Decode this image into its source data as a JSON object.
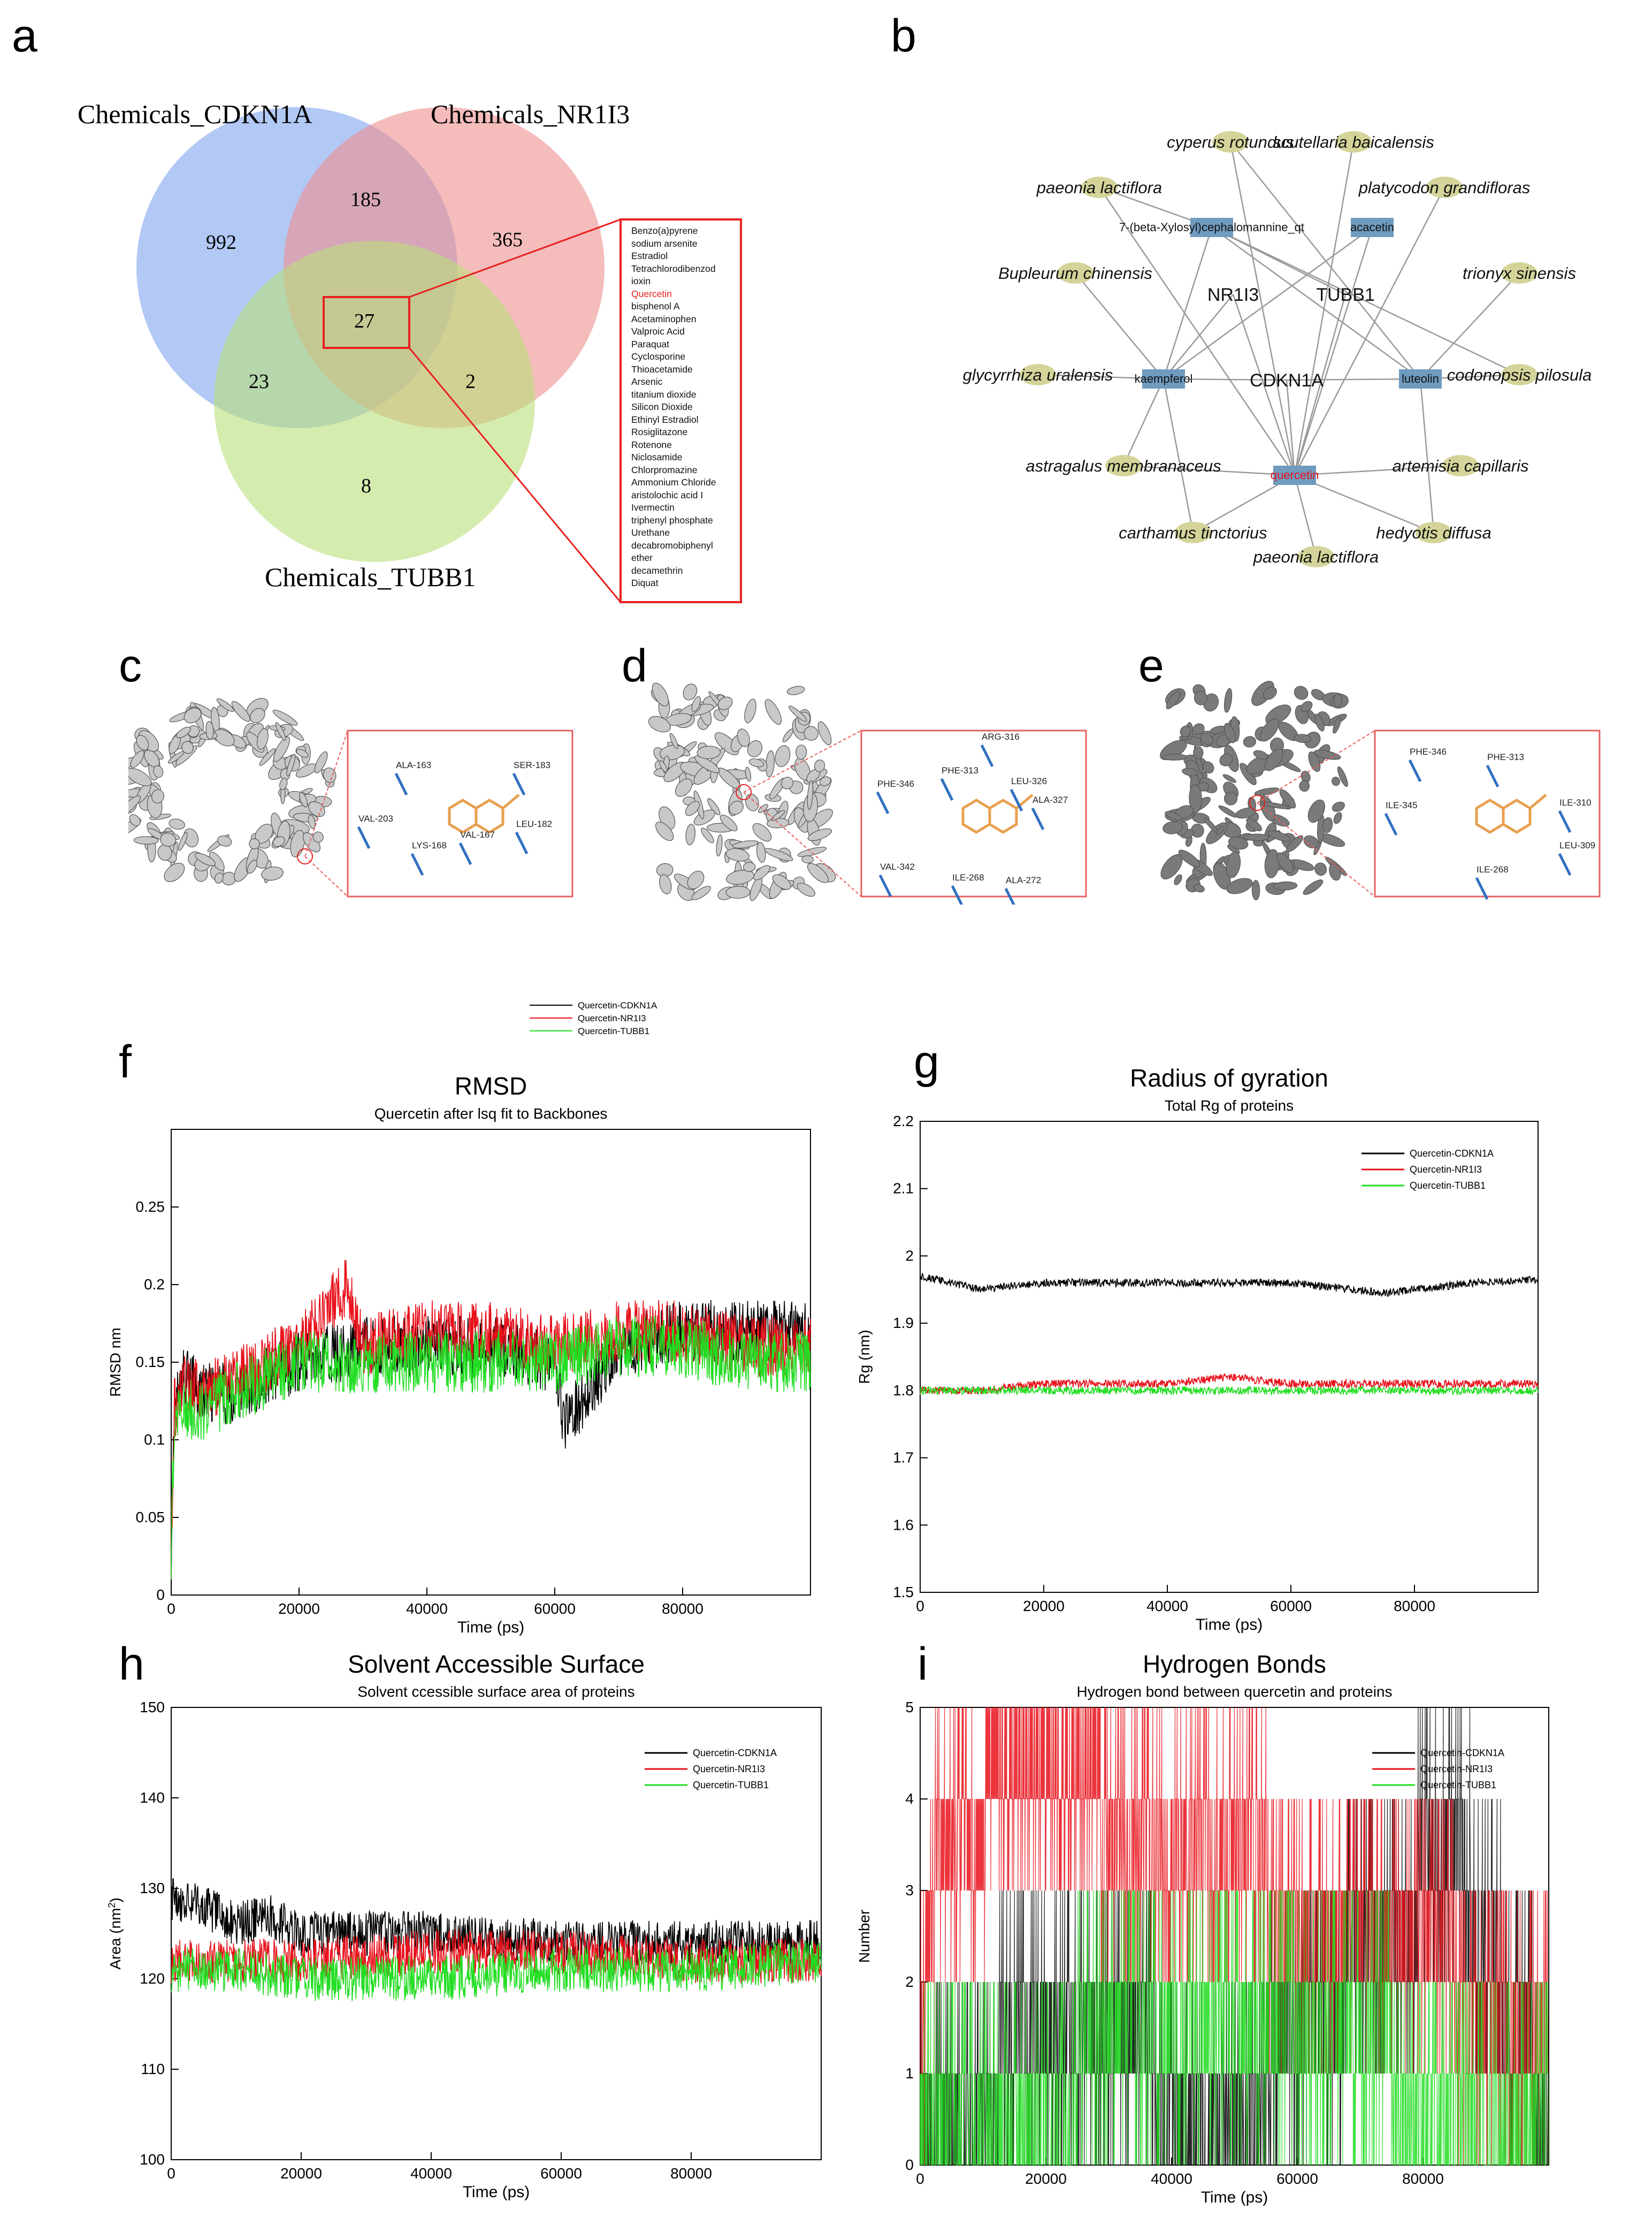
{
  "panels": [
    "a",
    "b",
    "c",
    "d",
    "e",
    "f",
    "g",
    "h",
    "i"
  ],
  "venn": {
    "labels": [
      "Chemicals_CDKN1A",
      "Chemicals_NR1I3",
      "Chemicals_TUBB1"
    ],
    "counts": {
      "cdkn1a_only": "992",
      "cdkn1a_nr1i3": "185",
      "nr1i3_only": "365",
      "all_three": "27",
      "cdkn1a_tubb1": "23",
      "nr1i3_tubb1": "2",
      "tubb1_only": "8"
    },
    "colors": {
      "cdkn1a": "#7fa3ee",
      "nr1i3": "#ef8f8f",
      "tubb1": "#b9e07a",
      "zoom": "#e8201e"
    },
    "shared_chemicals": [
      "Benzo(a)pyrene",
      "sodium arsenite",
      "Estradiol",
      "Tetrachlorodibenzod",
      "ioxin",
      "Quercetin",
      "bisphenol A",
      "Acetaminophen",
      "Valproic Acid",
      "Paraquat",
      "Cyclosporine",
      "Thioacetamide",
      "Arsenic",
      "titanium dioxide",
      "Silicon Dioxide",
      "Ethinyl Estradiol",
      "Rosiglitazone",
      "Rotenone",
      "Niclosamide",
      "Chlorpromazine",
      "Ammonium Chloride",
      "aristolochic acid I",
      "Ivermectin",
      "triphenyl phosphate",
      "Urethane",
      "decabromobiphenyl",
      "ether",
      "decamethrin",
      "Diquat"
    ],
    "highlight": "Quercetin"
  },
  "network": {
    "herbs": [
      "cyperus rotundus",
      "scutellaria baicalensis",
      "paeonia lactiflora",
      "platycodon grandifloras",
      "Bupleurum chinensis",
      "trionyx sinensis",
      "glycyrrhiza uralensis",
      "codonopsis pilosula",
      "astragalus membranaceus",
      "artemisia capillaris",
      "carthamus tinctorius",
      "hedyotis diffusa",
      "paeonia lactiflora"
    ],
    "compounds": [
      "7-(beta-Xylosyl)cephalomannine_qt",
      "acacetin",
      "kaempferol",
      "luteolin",
      "quercetin"
    ],
    "targets": [
      "NR1I3",
      "TUBB1",
      "CDKN1A"
    ],
    "herb_color": "#d4d49a",
    "compound_color": "#6f9bbf"
  },
  "docking": {
    "c": [
      "ALA-163",
      "SER-183",
      "VAL-203",
      "LEU-182",
      "LYS-168",
      "VAL-167"
    ],
    "d": [
      "ARG-316",
      "PHE-346",
      "PHE-313",
      "LEU-326",
      "ALA-327",
      "VAL-342",
      "ILE-268",
      "ALA-272"
    ],
    "e": [
      "PHE-346",
      "PHE-313",
      "ILE-345",
      "ILE-310",
      "LEU-309",
      "ILE-268"
    ]
  },
  "legend_top": [
    "Quercetin-CDKN1A",
    "Quercetin-NR1I3",
    "Quercetin-TUBB1"
  ],
  "series_colors": [
    "#000000",
    "#e8101a",
    "#22dd22"
  ],
  "chart_data": [
    {
      "type": "line",
      "panel": "f",
      "title": "RMSD",
      "subtitle": "Quercetin after lsq fit to Backbones",
      "xlabel": "Time (ps)",
      "ylabel": "RMSD  nm",
      "xlim": [
        0,
        100000
      ],
      "ylim": [
        0,
        0.3
      ],
      "xticks": [
        "0",
        "20000",
        "40000",
        "60000",
        "80000"
      ],
      "yticks": [
        "0",
        "0.05",
        "0.1",
        "0.15",
        "0.2",
        "0.25"
      ],
      "series": [
        {
          "name": "Quercetin-CDKN1A",
          "x": [
            0,
            500,
            2000,
            5000,
            10000,
            15000,
            20000,
            30000,
            40000,
            50000,
            60000,
            61500,
            70000,
            80000,
            90000,
            100000
          ],
          "values": [
            0.03,
            0.12,
            0.14,
            0.13,
            0.13,
            0.14,
            0.15,
            0.16,
            0.16,
            0.16,
            0.15,
            0.11,
            0.16,
            0.17,
            0.17,
            0.17
          ]
        },
        {
          "name": "Quercetin-NR1I3",
          "x": [
            0,
            500,
            2000,
            5000,
            10000,
            15000,
            20000,
            27500,
            30000,
            40000,
            50000,
            60000,
            70000,
            80000,
            90000,
            100000
          ],
          "values": [
            0.03,
            0.12,
            0.14,
            0.13,
            0.14,
            0.15,
            0.16,
            0.2,
            0.16,
            0.17,
            0.17,
            0.16,
            0.17,
            0.17,
            0.16,
            0.16
          ]
        },
        {
          "name": "Quercetin-TUBB1",
          "x": [
            0,
            500,
            2000,
            5000,
            10000,
            15000,
            20000,
            30000,
            40000,
            50000,
            60000,
            70000,
            80000,
            90000,
            100000
          ],
          "values": [
            0.03,
            0.11,
            0.12,
            0.12,
            0.13,
            0.14,
            0.15,
            0.15,
            0.15,
            0.15,
            0.15,
            0.16,
            0.16,
            0.15,
            0.15
          ]
        }
      ]
    },
    {
      "type": "line",
      "panel": "g",
      "title": "Radius of gyration",
      "subtitle": "Total Rg of proteins",
      "xlabel": "Time (ps)",
      "ylabel": "Rg (nm)",
      "xlim": [
        0,
        100000
      ],
      "ylim": [
        1.5,
        2.2
      ],
      "xticks": [
        "0",
        "20000",
        "40000",
        "60000",
        "80000"
      ],
      "yticks": [
        "1.5",
        "1.6",
        "1.7",
        "1.8",
        "1.9",
        "2",
        "2.1",
        "2.2"
      ],
      "legend": [
        "Quercetin-CDKN1A",
        "Quercetin-NR1I3",
        "Quercetin-TUBB1"
      ],
      "series": [
        {
          "name": "Quercetin-CDKN1A",
          "x": [
            0,
            10000,
            20000,
            40000,
            60000,
            75000,
            90000,
            100000
          ],
          "values": [
            1.97,
            1.95,
            1.96,
            1.96,
            1.96,
            1.945,
            1.96,
            1.965
          ]
        },
        {
          "name": "Quercetin-NR1I3",
          "x": [
            0,
            10000,
            20000,
            40000,
            50000,
            60000,
            80000,
            100000
          ],
          "values": [
            1.8,
            1.8,
            1.81,
            1.81,
            1.82,
            1.81,
            1.81,
            1.81
          ]
        },
        {
          "name": "Quercetin-TUBB1",
          "x": [
            0,
            10000,
            20000,
            40000,
            60000,
            80000,
            100000
          ],
          "values": [
            1.8,
            1.8,
            1.8,
            1.8,
            1.8,
            1.8,
            1.8
          ]
        }
      ]
    },
    {
      "type": "line",
      "panel": "h",
      "title": "Solvent Accessible Surface",
      "subtitle": "Solvent ccessible surface area of proteins",
      "xlabel": "Time (ps)",
      "ylabel": "Area (nm",
      "ylabel_sup": "2",
      "ylabel_end": ")",
      "xlim": [
        0,
        100000
      ],
      "ylim": [
        100,
        150
      ],
      "xticks": [
        "0",
        "20000",
        "40000",
        "60000",
        "80000"
      ],
      "yticks": [
        "100",
        "110",
        "120",
        "130",
        "140",
        "150"
      ],
      "legend": [
        "Quercetin-CDKN1A",
        "Quercetin-NR1I3",
        "Quercetin-TUBB1"
      ],
      "series": [
        {
          "name": "Quercetin-CDKN1A",
          "x": [
            0,
            5000,
            10000,
            15000,
            20000,
            30000,
            40000,
            60000,
            80000,
            100000
          ],
          "values": [
            129,
            128,
            126,
            127,
            125,
            125,
            125,
            124,
            124,
            124
          ]
        },
        {
          "name": "Quercetin-NR1I3",
          "x": [
            0,
            10000,
            20000,
            40000,
            60000,
            80000,
            100000
          ],
          "values": [
            122,
            122,
            122,
            123,
            123,
            122,
            122
          ]
        },
        {
          "name": "Quercetin-TUBB1",
          "x": [
            0,
            10000,
            20000,
            40000,
            60000,
            80000,
            100000
          ],
          "values": [
            121,
            121,
            120,
            120,
            121,
            121,
            122
          ]
        }
      ]
    },
    {
      "type": "line",
      "panel": "i",
      "title": "Hydrogen Bonds",
      "subtitle": "Hydrogen bond between quercetin and proteins",
      "xlabel": "Time (ps)",
      "ylabel": "Number",
      "xlim": [
        0,
        100000
      ],
      "ylim": [
        0,
        5
      ],
      "xticks": [
        "0",
        "20000",
        "40000",
        "60000",
        "80000"
      ],
      "yticks": [
        "0",
        "1",
        "2",
        "3",
        "4",
        "5"
      ],
      "legend": [
        "Quercetin-CDKN1A",
        "Quercetin-NR1I3",
        "Quercetin-TUBB1"
      ],
      "series": [
        {
          "name": "Quercetin-CDKN1A",
          "x": [
            0,
            25000,
            50000,
            85000,
            100000
          ],
          "values": [
            1,
            2,
            1,
            4,
            1
          ]
        },
        {
          "name": "Quercetin-NR1I3",
          "x": [
            0,
            3000,
            17500,
            40000,
            100000
          ],
          "values": [
            2,
            4,
            5,
            4,
            2
          ]
        },
        {
          "name": "Quercetin-TUBB1",
          "x": [
            0,
            50000,
            100000
          ],
          "values": [
            1,
            2,
            1
          ]
        }
      ]
    }
  ]
}
